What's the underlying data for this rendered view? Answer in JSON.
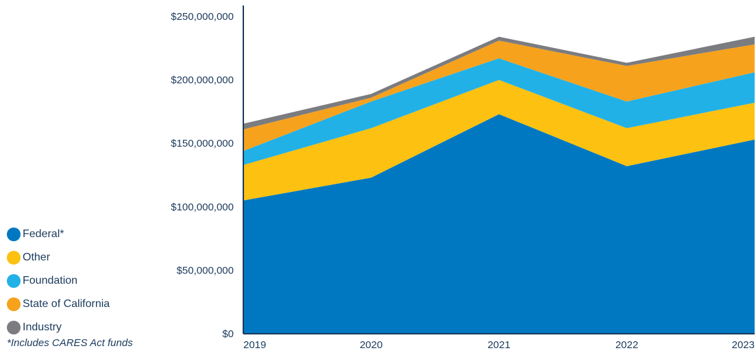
{
  "chart_data": {
    "type": "area",
    "stacked": true,
    "categories": [
      "2019",
      "2020",
      "2021",
      "2022",
      "2023"
    ],
    "ylim": [
      0,
      250000000
    ],
    "yticks": [
      "$0",
      "$50,000,000",
      "$100,000,000",
      "$150,000,000",
      "$200,000,000",
      "$250,000,000"
    ],
    "ytick_values": [
      0,
      50000000,
      100000000,
      150000000,
      200000000,
      250000000
    ],
    "legend_position": "left",
    "series": [
      {
        "name": "Federal*",
        "color": "#0078c1",
        "values": [
          105000000,
          123000000,
          173000000,
          132000000,
          153000000
        ]
      },
      {
        "name": "Other",
        "color": "#fcc111",
        "values": [
          28000000,
          39000000,
          27000000,
          30000000,
          29000000
        ]
      },
      {
        "name": "Foundation",
        "color": "#22b1e6",
        "values": [
          11000000,
          21000000,
          17000000,
          21000000,
          24000000
        ]
      },
      {
        "name": "State of California",
        "color": "#f7a21d",
        "values": [
          17000000,
          3000000,
          14000000,
          28000000,
          22000000
        ]
      },
      {
        "name": "Industry",
        "color": "#7b7c80",
        "values": [
          4500000,
          3000000,
          3000000,
          2500000,
          6000000
        ]
      }
    ]
  },
  "footnote": "*Includes CARES Act funds"
}
